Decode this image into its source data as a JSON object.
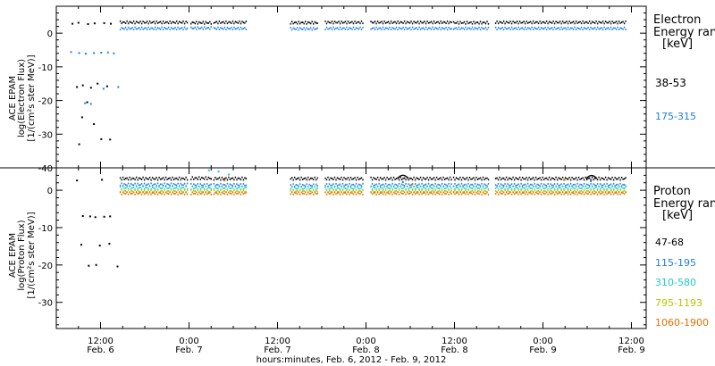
{
  "figure": {
    "xlabel": "hours:minutes, Feb.  6, 2012 - Feb.  9, 2012",
    "x_ticks": [
      {
        "time": "12:00",
        "date": "Feb. 6",
        "t": 12
      },
      {
        "time": "0:00",
        "date": "Feb. 7",
        "t": 24
      },
      {
        "time": "12:00",
        "date": "Feb. 7",
        "t": 36
      },
      {
        "time": "0:00",
        "date": "Feb. 8",
        "t": 48
      },
      {
        "time": "12:00",
        "date": "Feb. 8",
        "t": 60
      },
      {
        "time": "0:00",
        "date": "Feb. 9",
        "t": 72
      },
      {
        "time": "12:00",
        "date": "Feb. 9",
        "t": 84
      }
    ],
    "xlim_hours_from_feb6_0000": [
      6,
      86
    ]
  },
  "chart_data": [
    {
      "type": "scatter",
      "panel": "top",
      "ylabel": [
        "ACE EPAM",
        "log(Electron Flux)",
        "[1/(cm²s ster MeV)]"
      ],
      "ylim": [
        -40,
        8
      ],
      "yticks": [
        0,
        -10,
        -20,
        -30,
        -40
      ],
      "legend": {
        "title": [
          "Electron",
          "Energy ranges",
          "[keV]"
        ]
      },
      "series": [
        {
          "name": "38-53",
          "color": "#000000",
          "points": [
            [
              8.2,
              2.8
            ],
            [
              9.0,
              3.1
            ],
            [
              10.3,
              2.7
            ],
            [
              11.2,
              2.9
            ],
            [
              12.5,
              3.0
            ],
            [
              13.4,
              2.8
            ],
            [
              8.8,
              -16.0
            ],
            [
              9.6,
              -15.5
            ],
            [
              10.7,
              -16.2
            ],
            [
              11.6,
              -15.0
            ],
            [
              12.9,
              -15.8
            ],
            [
              10.2,
              -20.5
            ],
            [
              9.5,
              -25.0
            ],
            [
              11.1,
              -27.0
            ],
            [
              9.1,
              -33.0
            ],
            [
              12.1,
              -31.5
            ],
            [
              13.3,
              -31.6
            ]
          ],
          "segments": [
            [
              14.6,
              23.8,
              3.2
            ],
            [
              24.2,
              27.0,
              3.1
            ],
            [
              27.3,
              31.7,
              3.2
            ],
            [
              37.7,
              41.5,
              3.1
            ],
            [
              42.4,
              47.6,
              3.2
            ],
            [
              48.6,
              59.6,
              3.2
            ],
            [
              59.8,
              64.7,
              3.1
            ],
            [
              65.5,
              83.3,
              3.2
            ]
          ]
        },
        {
          "name": "175-315",
          "color": "#1f7fe0",
          "points": [
            [
              8.0,
              -5.6
            ],
            [
              9.1,
              -5.9
            ],
            [
              10.0,
              -6.1
            ],
            [
              11.1,
              -5.9
            ],
            [
              12.1,
              -5.8
            ],
            [
              13.0,
              -5.7
            ],
            [
              13.8,
              -6.0
            ],
            [
              14.4,
              -16.0
            ],
            [
              12.4,
              -16.5
            ],
            [
              10.7,
              -21.0
            ],
            [
              9.9,
              -20.8
            ]
          ],
          "segments": [
            [
              14.6,
              23.8,
              1.4
            ],
            [
              24.2,
              27.0,
              1.5
            ],
            [
              27.3,
              31.7,
              1.4
            ],
            [
              37.7,
              41.5,
              1.3
            ],
            [
              42.4,
              47.6,
              1.4
            ],
            [
              48.6,
              59.6,
              1.4
            ],
            [
              59.8,
              64.7,
              1.4
            ],
            [
              65.5,
              83.3,
              1.4
            ]
          ]
        }
      ]
    },
    {
      "type": "scatter",
      "panel": "bottom",
      "ylabel": [
        "ACE EPAM",
        "log(Proton Flux)",
        "[1/(cm²s ster MeV)]"
      ],
      "ylim": [
        -37,
        6
      ],
      "yticks": [
        0,
        -10,
        -20,
        -30
      ],
      "legend": {
        "title": [
          "Proton",
          "Energy ranges",
          "[keV]"
        ]
      },
      "series": [
        {
          "name": "47-68",
          "color": "#000000",
          "points": [
            [
              8.8,
              2.6
            ],
            [
              12.2,
              2.8
            ],
            [
              9.6,
              -6.9
            ],
            [
              10.6,
              -7.0
            ],
            [
              11.3,
              -7.2
            ],
            [
              12.5,
              -7.1
            ],
            [
              13.3,
              -7.0
            ],
            [
              9.4,
              -14.6
            ],
            [
              11.9,
              -14.8
            ],
            [
              13.2,
              -14.3
            ],
            [
              11.4,
              -20.0
            ],
            [
              14.3,
              -20.4
            ],
            [
              10.4,
              -20.2
            ]
          ],
          "segments": [
            [
              14.6,
              23.8,
              3.1
            ],
            [
              24.2,
              27.0,
              3.2
            ],
            [
              27.3,
              31.7,
              3.1
            ],
            [
              37.7,
              41.5,
              3.1
            ],
            [
              42.4,
              47.6,
              3.1
            ],
            [
              48.6,
              59.6,
              3.1
            ],
            [
              59.8,
              64.7,
              3.1
            ],
            [
              65.5,
              83.3,
              3.1
            ]
          ],
          "peaks": [
            [
              53.0,
              4.2
            ],
            [
              78.6,
              4.1
            ]
          ]
        },
        {
          "name": "115-195",
          "color": "#1f7fe0",
          "points": [
            [
              53.0,
              2.2
            ],
            [
              78.5,
              2.4
            ]
          ],
          "segments": [
            [
              14.6,
              23.8,
              1.5
            ],
            [
              24.2,
              27.0,
              1.4
            ],
            [
              27.3,
              31.7,
              1.4
            ],
            [
              37.7,
              41.5,
              1.3
            ],
            [
              42.4,
              47.6,
              1.4
            ],
            [
              48.6,
              59.6,
              1.4
            ],
            [
              59.8,
              64.7,
              1.4
            ],
            [
              65.5,
              83.3,
              1.4
            ]
          ]
        },
        {
          "name": "310-580",
          "color": "#20c8c8",
          "points": [
            [
              26.7,
              5.3
            ],
            [
              28.0,
              5.0
            ],
            [
              29.4,
              4.2
            ]
          ],
          "segments": [
            [
              14.6,
              23.8,
              0.6
            ],
            [
              24.2,
              27.0,
              0.6
            ],
            [
              27.3,
              31.7,
              0.6
            ],
            [
              37.7,
              41.5,
              0.5
            ],
            [
              42.4,
              47.6,
              0.5
            ],
            [
              48.6,
              59.6,
              0.6
            ],
            [
              59.8,
              64.7,
              0.6
            ],
            [
              65.5,
              83.3,
              0.6
            ]
          ]
        },
        {
          "name": "795-1193",
          "color": "#b5c800",
          "points": [],
          "segments": [
            [
              14.6,
              23.8,
              -0.3
            ],
            [
              24.2,
              27.0,
              -0.3
            ],
            [
              27.3,
              31.7,
              -0.3
            ],
            [
              37.7,
              41.5,
              -0.3
            ],
            [
              42.4,
              47.6,
              -0.3
            ],
            [
              48.6,
              59.6,
              -0.3
            ],
            [
              59.8,
              64.7,
              -0.3
            ],
            [
              65.5,
              83.3,
              -0.3
            ]
          ]
        },
        {
          "name": "1060-1900",
          "color": "#e07000",
          "points": [
            [
              28.8,
              2.6
            ],
            [
              54.2,
              1.5
            ],
            [
              74.9,
              2.9
            ]
          ],
          "segments": [
            [
              14.6,
              23.8,
              -0.8
            ],
            [
              24.2,
              27.0,
              -0.8
            ],
            [
              27.3,
              31.7,
              -0.8
            ],
            [
              37.7,
              41.5,
              -0.8
            ],
            [
              42.4,
              47.6,
              -0.8
            ],
            [
              48.6,
              59.6,
              -0.8
            ],
            [
              59.8,
              64.7,
              -0.8
            ],
            [
              65.5,
              83.3,
              -0.8
            ]
          ]
        }
      ]
    }
  ]
}
